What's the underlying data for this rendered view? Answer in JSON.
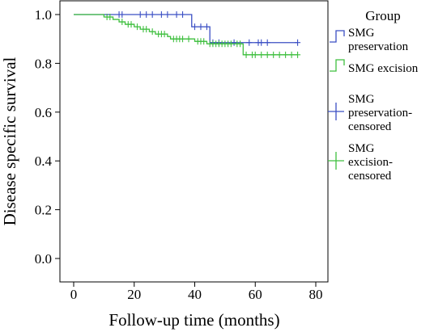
{
  "chart_data": {
    "type": "line",
    "subtype": "kaplan-meier",
    "xlabel": "Follow-up time (months)",
    "ylabel": "Disease specific survival",
    "xlim": [
      0,
      80
    ],
    "ylim": [
      0.0,
      1.0
    ],
    "xticks": [
      "0",
      "20",
      "40",
      "60",
      "80"
    ],
    "yticks": [
      "0.0",
      "0.2",
      "0.4",
      "0.6",
      "0.8",
      "1.0"
    ],
    "grid": false,
    "legend": {
      "title": "Group",
      "placement": "right",
      "entries": [
        {
          "kind": "step",
          "series": 0,
          "lines": [
            "SMG",
            "preservation"
          ]
        },
        {
          "kind": "step",
          "series": 1,
          "lines": [
            "SMG excision"
          ]
        },
        {
          "kind": "censor",
          "series": 0,
          "lines": [
            "SMG",
            "preservation-",
            "censored"
          ]
        },
        {
          "kind": "censor",
          "series": 1,
          "lines": [
            "SMG",
            "excision-",
            "censored"
          ]
        }
      ]
    },
    "series": [
      {
        "name": "SMG preservation",
        "color": "#3b4fc4",
        "steps": [
          [
            0,
            1.0
          ],
          [
            39,
            0.95
          ],
          [
            45,
            0.885
          ],
          [
            74,
            0.885
          ]
        ],
        "censored": [
          [
            15,
            1.0
          ],
          [
            16,
            1.0
          ],
          [
            22,
            1.0
          ],
          [
            24,
            1.0
          ],
          [
            26,
            1.0
          ],
          [
            29,
            1.0
          ],
          [
            31,
            1.0
          ],
          [
            34,
            1.0
          ],
          [
            36,
            1.0
          ],
          [
            40,
            0.95
          ],
          [
            42,
            0.95
          ],
          [
            44,
            0.95
          ],
          [
            46,
            0.885
          ],
          [
            48,
            0.885
          ],
          [
            53,
            0.885
          ],
          [
            58,
            0.885
          ],
          [
            61,
            0.885
          ],
          [
            62,
            0.885
          ],
          [
            64,
            0.885
          ],
          [
            74,
            0.885
          ]
        ]
      },
      {
        "name": "SMG excision",
        "color": "#3fbf3f",
        "steps": [
          [
            0,
            1.0
          ],
          [
            10,
            0.99
          ],
          [
            13,
            0.98
          ],
          [
            15,
            0.97
          ],
          [
            17,
            0.96
          ],
          [
            20,
            0.95
          ],
          [
            22,
            0.94
          ],
          [
            25,
            0.93
          ],
          [
            27,
            0.92
          ],
          [
            31,
            0.91
          ],
          [
            32,
            0.9
          ],
          [
            40,
            0.89
          ],
          [
            44,
            0.88
          ],
          [
            56,
            0.835
          ],
          [
            74,
            0.835
          ]
        ],
        "censored": [
          [
            11,
            0.99
          ],
          [
            12,
            0.99
          ],
          [
            16,
            0.97
          ],
          [
            18,
            0.96
          ],
          [
            19,
            0.96
          ],
          [
            21,
            0.95
          ],
          [
            23,
            0.94
          ],
          [
            24,
            0.94
          ],
          [
            26,
            0.93
          ],
          [
            28,
            0.92
          ],
          [
            29,
            0.92
          ],
          [
            30,
            0.92
          ],
          [
            33,
            0.9
          ],
          [
            34,
            0.9
          ],
          [
            35,
            0.9
          ],
          [
            36,
            0.9
          ],
          [
            38,
            0.9
          ],
          [
            41,
            0.89
          ],
          [
            42,
            0.89
          ],
          [
            43,
            0.89
          ],
          [
            45,
            0.88
          ],
          [
            46,
            0.88
          ],
          [
            47,
            0.88
          ],
          [
            48,
            0.88
          ],
          [
            49,
            0.88
          ],
          [
            50,
            0.88
          ],
          [
            51,
            0.88
          ],
          [
            52,
            0.88
          ],
          [
            54,
            0.88
          ],
          [
            55,
            0.88
          ],
          [
            57,
            0.835
          ],
          [
            59,
            0.835
          ],
          [
            60,
            0.835
          ],
          [
            62,
            0.835
          ],
          [
            64,
            0.835
          ],
          [
            66,
            0.835
          ],
          [
            68,
            0.835
          ],
          [
            70,
            0.835
          ],
          [
            72,
            0.835
          ],
          [
            74,
            0.835
          ]
        ]
      }
    ]
  }
}
